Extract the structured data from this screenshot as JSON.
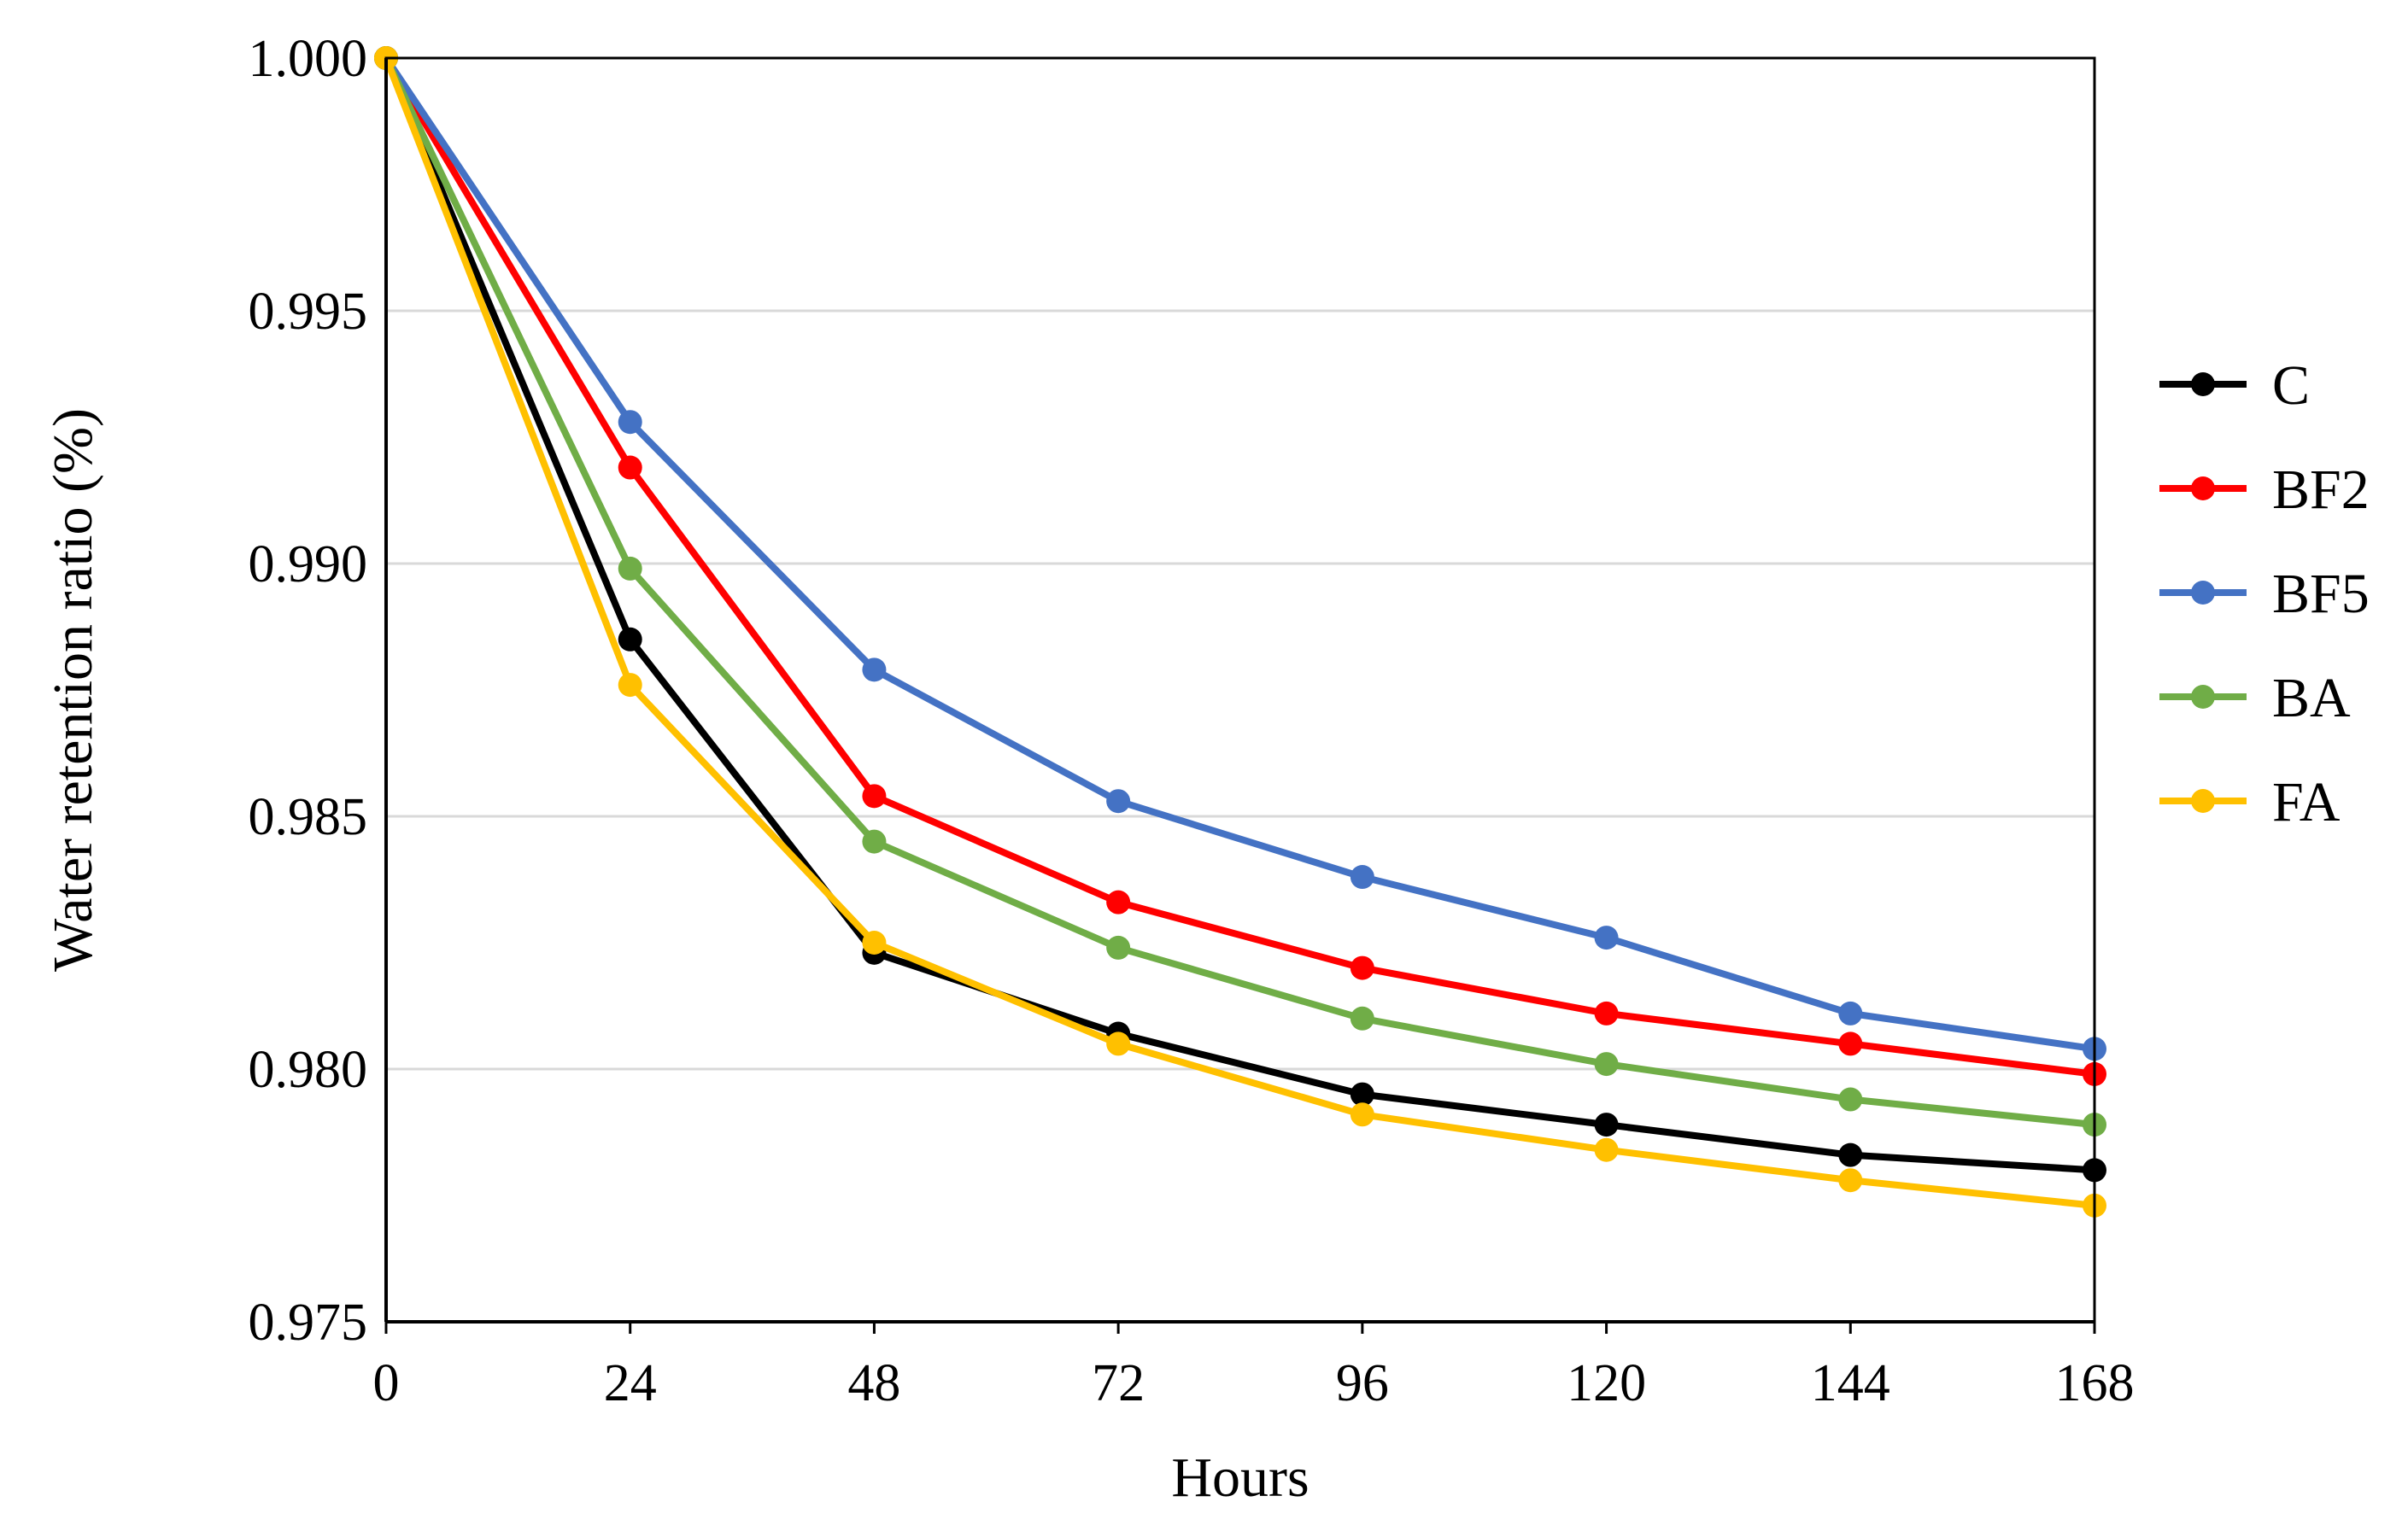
{
  "chart_data": {
    "type": "line",
    "title": "",
    "xlabel": "Hours",
    "ylabel": "Water retention ratio (%)",
    "x": [
      0,
      24,
      48,
      72,
      96,
      120,
      144,
      168
    ],
    "x_tick_labels": [
      "0",
      "24",
      "48",
      "72",
      "96",
      "120",
      "144",
      "168"
    ],
    "xlim": [
      0,
      168
    ],
    "ylim": [
      0.975,
      1.0
    ],
    "y_ticks": [
      0.975,
      0.98,
      0.985,
      0.99,
      0.995,
      1.0
    ],
    "y_tick_labels": [
      "0.975",
      "0.980",
      "0.985",
      "0.990",
      "0.995",
      "1.000"
    ],
    "grid": "horizontal",
    "legend_position": "right",
    "series": [
      {
        "name": "C",
        "color": "#000000",
        "values": [
          1.0,
          0.9885,
          0.9823,
          0.9807,
          0.9795,
          0.9789,
          0.9783,
          0.978
        ]
      },
      {
        "name": "BF2",
        "color": "#ff0000",
        "values": [
          1.0,
          0.9919,
          0.9854,
          0.9833,
          0.982,
          0.9811,
          0.9805,
          0.9799
        ]
      },
      {
        "name": "BF5",
        "color": "#4472c4",
        "values": [
          1.0,
          0.9928,
          0.9879,
          0.9853,
          0.9838,
          0.9826,
          0.9811,
          0.9804
        ]
      },
      {
        "name": "BA",
        "color": "#70ad47",
        "values": [
          1.0,
          0.9899,
          0.9845,
          0.9824,
          0.981,
          0.9801,
          0.9794,
          0.9789
        ]
      },
      {
        "name": "FA",
        "color": "#ffc000",
        "values": [
          1.0,
          0.9876,
          0.9825,
          0.9805,
          0.9791,
          0.9784,
          0.9778,
          0.9773
        ]
      }
    ]
  }
}
